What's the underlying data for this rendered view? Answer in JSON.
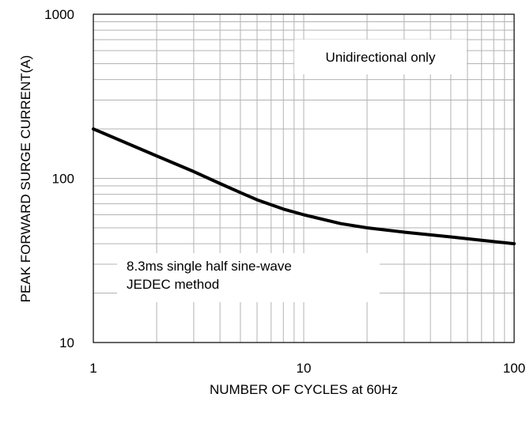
{
  "chart_data": {
    "type": "line",
    "title": "",
    "xlabel": "NUMBER OF CYCLES at 60Hz",
    "ylabel": "PEAK FORWARD SURGE CURRENT(A)",
    "xscale": "log",
    "yscale": "log",
    "xlim": [
      1,
      100
    ],
    "ylim": [
      10,
      1000
    ],
    "grid": true,
    "x_tick_labels": [
      "1",
      "10",
      "100"
    ],
    "y_tick_labels": [
      "10",
      "100",
      "1000"
    ],
    "series": [
      {
        "x": [
          1,
          2,
          3,
          4,
          5,
          6,
          8,
          10,
          15,
          20,
          30,
          50,
          70,
          100
        ],
        "y": [
          200,
          137,
          110,
          93,
          82,
          74,
          65,
          60,
          53,
          50,
          47,
          44,
          42,
          40
        ]
      }
    ],
    "annotations": [
      {
        "text": "Unidirectional only"
      },
      {
        "text": "8.3ms single half sine-wave"
      },
      {
        "text": "JEDEC method"
      }
    ],
    "colors": {
      "line": "#000000",
      "grid": "#b3b3b3",
      "frame": "#000000"
    }
  }
}
